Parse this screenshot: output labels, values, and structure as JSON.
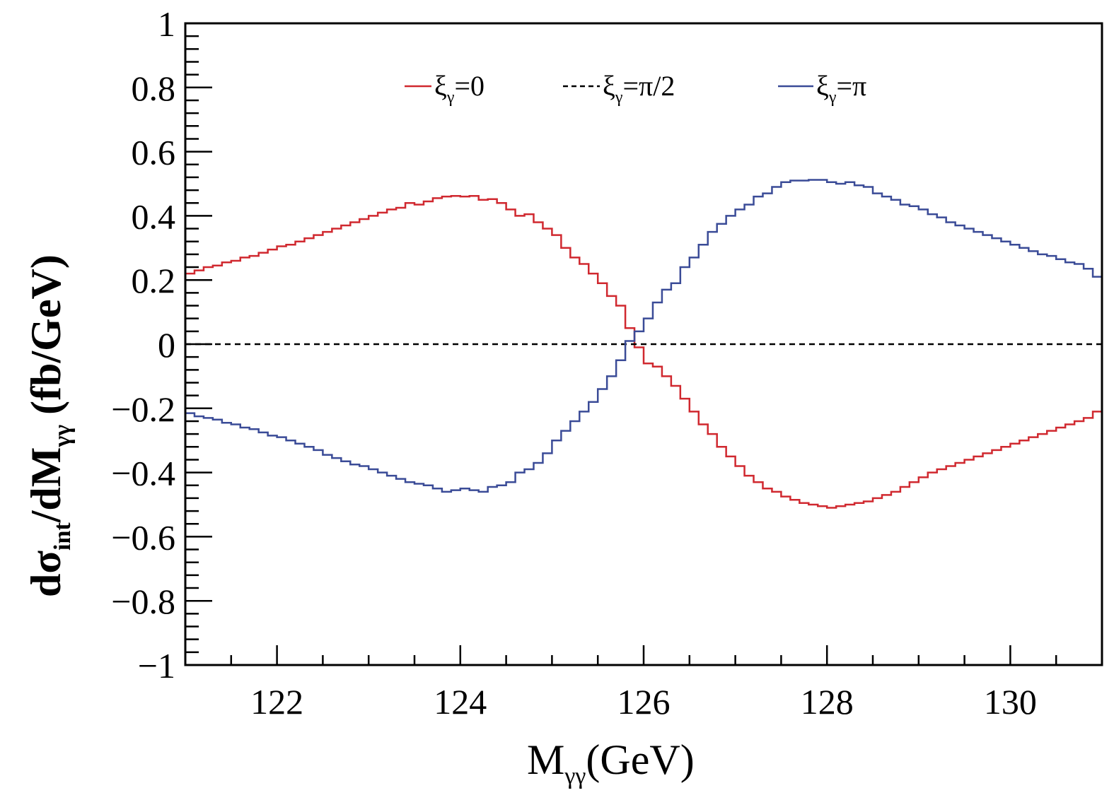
{
  "chart_data": {
    "type": "line",
    "title": "",
    "xlabel": "M",
    "xlabel_sub": "γγ",
    "xlabel_unit": "(GeV)",
    "ylabel_main": "dσ",
    "ylabel_sub1": "int",
    "ylabel_mid": "/dM",
    "ylabel_sub2": "γγ",
    "ylabel_unit": "(fb/GeV)",
    "xlim": [
      121,
      131
    ],
    "ylim": [
      -1,
      1
    ],
    "x_tick_values": [
      122,
      124,
      126,
      128,
      130
    ],
    "x_tick_labels": [
      "122",
      "124",
      "126",
      "128",
      "130"
    ],
    "y_tick_values": [
      1,
      0.8,
      0.6,
      0.4,
      0.2,
      0,
      -0.2,
      -0.4,
      -0.6,
      -0.8,
      -1
    ],
    "y_tick_labels": [
      "1",
      "0.8",
      "0.6",
      "0.4",
      "0.2",
      "0",
      "−0.2",
      "−0.4",
      "−0.6",
      "−0.8",
      "−1"
    ],
    "legend_position": "top",
    "series": [
      {
        "name_main": "ξ",
        "name_sub": "γ",
        "name_tail": "=0",
        "color": "#d0282f",
        "style": "solid",
        "x": [
          121.0,
          121.1,
          121.2,
          121.3,
          121.4,
          121.5,
          121.6,
          121.7,
          121.8,
          121.9,
          122.0,
          122.1,
          122.2,
          122.3,
          122.4,
          122.5,
          122.6,
          122.7,
          122.8,
          122.9,
          123.0,
          123.1,
          123.2,
          123.3,
          123.4,
          123.5,
          123.6,
          123.7,
          123.8,
          123.9,
          124.0,
          124.1,
          124.2,
          124.3,
          124.4,
          124.5,
          124.6,
          124.7,
          124.8,
          124.9,
          125.0,
          125.1,
          125.2,
          125.3,
          125.4,
          125.5,
          125.6,
          125.7,
          125.8,
          125.9,
          126.0,
          126.1,
          126.2,
          126.3,
          126.4,
          126.5,
          126.6,
          126.7,
          126.8,
          126.9,
          127.0,
          127.1,
          127.2,
          127.3,
          127.4,
          127.5,
          127.6,
          127.7,
          127.8,
          127.9,
          128.0,
          128.1,
          128.2,
          128.3,
          128.4,
          128.5,
          128.6,
          128.7,
          128.8,
          128.9,
          129.0,
          129.1,
          129.2,
          129.3,
          129.4,
          129.5,
          129.6,
          129.7,
          129.8,
          129.9,
          130.0,
          130.1,
          130.2,
          130.3,
          130.4,
          130.5,
          130.6,
          130.7,
          130.8,
          130.9
        ],
        "y": [
          0.22,
          0.23,
          0.24,
          0.245,
          0.255,
          0.26,
          0.27,
          0.275,
          0.285,
          0.295,
          0.305,
          0.31,
          0.32,
          0.33,
          0.34,
          0.35,
          0.36,
          0.37,
          0.38,
          0.39,
          0.4,
          0.41,
          0.42,
          0.425,
          0.44,
          0.435,
          0.445,
          0.455,
          0.46,
          0.462,
          0.46,
          0.462,
          0.45,
          0.452,
          0.44,
          0.42,
          0.4,
          0.405,
          0.38,
          0.36,
          0.34,
          0.3,
          0.27,
          0.25,
          0.22,
          0.19,
          0.15,
          0.12,
          0.05,
          -0.01,
          -0.06,
          -0.07,
          -0.1,
          -0.13,
          -0.17,
          -0.21,
          -0.25,
          -0.28,
          -0.32,
          -0.35,
          -0.38,
          -0.41,
          -0.43,
          -0.45,
          -0.46,
          -0.475,
          -0.485,
          -0.495,
          -0.5,
          -0.505,
          -0.51,
          -0.505,
          -0.5,
          -0.495,
          -0.49,
          -0.48,
          -0.47,
          -0.46,
          -0.445,
          -0.43,
          -0.415,
          -0.4,
          -0.39,
          -0.38,
          -0.37,
          -0.36,
          -0.35,
          -0.34,
          -0.33,
          -0.32,
          -0.31,
          -0.3,
          -0.29,
          -0.28,
          -0.27,
          -0.26,
          -0.25,
          -0.24,
          -0.23,
          -0.21
        ]
      },
      {
        "name_main": "ξ",
        "name_sub": "γ",
        "name_tail": "=π/2",
        "color": "#000000",
        "style": "dashed",
        "x": [
          121,
          131
        ],
        "y": [
          0,
          0
        ]
      },
      {
        "name_main": "ξ",
        "name_sub": "γ",
        "name_tail": "=π",
        "color": "#3a4b97",
        "style": "solid",
        "x": [
          121.0,
          121.1,
          121.2,
          121.3,
          121.4,
          121.5,
          121.6,
          121.7,
          121.8,
          121.9,
          122.0,
          122.1,
          122.2,
          122.3,
          122.4,
          122.5,
          122.6,
          122.7,
          122.8,
          122.9,
          123.0,
          123.1,
          123.2,
          123.3,
          123.4,
          123.5,
          123.6,
          123.7,
          123.8,
          123.9,
          124.0,
          124.1,
          124.2,
          124.3,
          124.4,
          124.5,
          124.6,
          124.7,
          124.8,
          124.9,
          125.0,
          125.1,
          125.2,
          125.3,
          125.4,
          125.5,
          125.6,
          125.7,
          125.8,
          125.9,
          126.0,
          126.1,
          126.2,
          126.3,
          126.4,
          126.5,
          126.6,
          126.7,
          126.8,
          126.9,
          127.0,
          127.1,
          127.2,
          127.3,
          127.4,
          127.5,
          127.6,
          127.7,
          127.8,
          127.9,
          128.0,
          128.1,
          128.2,
          128.3,
          128.4,
          128.5,
          128.6,
          128.7,
          128.8,
          128.9,
          129.0,
          129.1,
          129.2,
          129.3,
          129.4,
          129.5,
          129.6,
          129.7,
          129.8,
          129.9,
          130.0,
          130.1,
          130.2,
          130.3,
          130.4,
          130.5,
          130.6,
          130.7,
          130.8,
          130.9
        ],
        "y": [
          -0.215,
          -0.225,
          -0.23,
          -0.235,
          -0.245,
          -0.25,
          -0.26,
          -0.265,
          -0.275,
          -0.285,
          -0.29,
          -0.3,
          -0.31,
          -0.32,
          -0.33,
          -0.345,
          -0.355,
          -0.365,
          -0.375,
          -0.38,
          -0.39,
          -0.4,
          -0.41,
          -0.42,
          -0.43,
          -0.435,
          -0.44,
          -0.45,
          -0.46,
          -0.455,
          -0.45,
          -0.455,
          -0.46,
          -0.445,
          -0.44,
          -0.43,
          -0.4,
          -0.39,
          -0.37,
          -0.34,
          -0.3,
          -0.27,
          -0.24,
          -0.21,
          -0.18,
          -0.14,
          -0.1,
          -0.05,
          0.01,
          0.04,
          0.08,
          0.13,
          0.17,
          0.19,
          0.24,
          0.27,
          0.31,
          0.35,
          0.375,
          0.4,
          0.42,
          0.435,
          0.46,
          0.47,
          0.49,
          0.505,
          0.51,
          0.51,
          0.512,
          0.512,
          0.505,
          0.5,
          0.505,
          0.495,
          0.49,
          0.47,
          0.46,
          0.45,
          0.435,
          0.43,
          0.42,
          0.405,
          0.395,
          0.38,
          0.37,
          0.36,
          0.35,
          0.34,
          0.33,
          0.32,
          0.31,
          0.3,
          0.29,
          0.28,
          0.275,
          0.265,
          0.255,
          0.25,
          0.235,
          0.21
        ]
      }
    ]
  }
}
